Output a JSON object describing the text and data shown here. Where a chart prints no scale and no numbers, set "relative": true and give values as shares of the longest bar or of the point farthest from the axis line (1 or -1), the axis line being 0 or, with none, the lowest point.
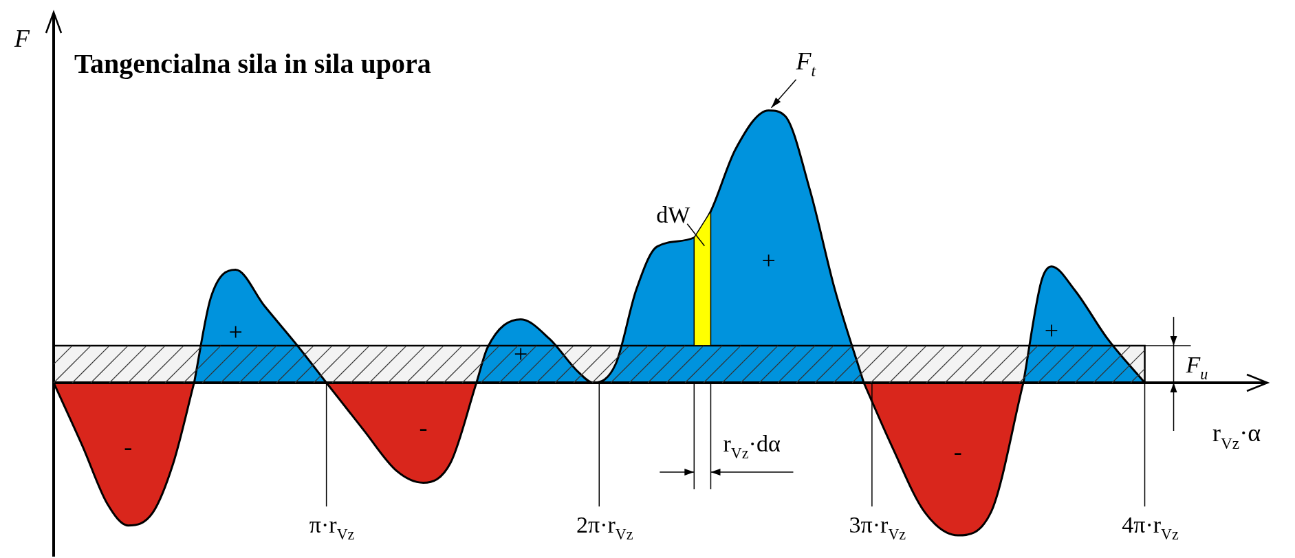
{
  "chart_data": {
    "type": "area",
    "relative": true,
    "title": "Tangencialna sila in sila upora",
    "ylabel": "F",
    "xlabel": "r$_{Vz}$·α",
    "xlim": [
      0,
      4.45
    ],
    "xticks": [
      {
        "value": 1,
        "label": "π·r$_{Vz}$"
      },
      {
        "value": 2,
        "label": "2π·r$_{Vz}$"
      },
      {
        "value": 3,
        "label": "3π·r$_{Vz}$"
      },
      {
        "value": 4,
        "label": "4π·r$_{Vz}$"
      }
    ],
    "series": [
      {
        "color": "#d9261c",
        "x": [
          0,
          0.106,
          0.197,
          0.273,
          0.364,
          0.439,
          0.515
        ],
        "values": [
          0,
          -0.233,
          -0.445,
          -0.524,
          -0.476,
          -0.294,
          0
        ]
      },
      {
        "color": "#0093dd",
        "x": [
          0.515,
          0.576,
          0.667,
          0.773,
          0.894,
          1.0
        ],
        "values": [
          0,
          0.312,
          0.415,
          0.282,
          0.136,
          0
        ]
      },
      {
        "color": "#d9261c",
        "x": [
          1.0,
          1.136,
          1.258,
          1.355,
          1.455,
          1.55
        ],
        "values": [
          0,
          -0.173,
          -0.324,
          -0.367,
          -0.294,
          0
        ]
      },
      {
        "color": "#0093dd",
        "x": [
          1.55,
          1.591,
          1.712,
          1.818,
          1.924,
          1.979,
          2.061,
          2.136,
          2.212,
          2.348,
          2.409,
          2.5,
          2.621,
          2.682,
          2.773,
          2.864,
          2.97
        ],
        "values": [
          0,
          0.13,
          0.233,
          0.161,
          0.039,
          0,
          0.07,
          0.342,
          0.5,
          0.533,
          0.63,
          0.858,
          1,
          0.979,
          0.706,
          0.342,
          0
        ]
      },
      {
        "color": "#d9261c",
        "x": [
          2.97,
          3.073,
          3.194,
          3.315,
          3.436,
          3.555
        ],
        "values": [
          0,
          -0.233,
          -0.476,
          -0.56,
          -0.476,
          0
        ]
      },
      {
        "color": "#0093dd",
        "x": [
          3.555,
          3.621,
          3.658,
          3.742,
          3.864,
          4.0
        ],
        "values": [
          0,
          0.373,
          0.427,
          0.342,
          0.161,
          0
        ]
      }
    ],
    "ref_lines": [
      {
        "axis": "y",
        "value": 0.136,
        "label": "F$_{u}$"
      }
    ],
    "bands": [
      {
        "axis": "y",
        "from": 0,
        "to": 0.136,
        "color": "#333333"
      },
      {
        "axis": "x",
        "from": 2.348,
        "to": 2.409,
        "color": "#ffff00",
        "label": "dW"
      }
    ],
    "annotations": [
      {
        "text": "F$_{t}$",
        "x": 2.621,
        "y": 1
      },
      "-",
      "+",
      "-",
      "+",
      "+",
      "-",
      "+",
      "r$_{Vz}$·dα"
    ],
    "legend": false,
    "marker": "none",
    "line_style": "solid",
    "tick_labels": "x"
  }
}
